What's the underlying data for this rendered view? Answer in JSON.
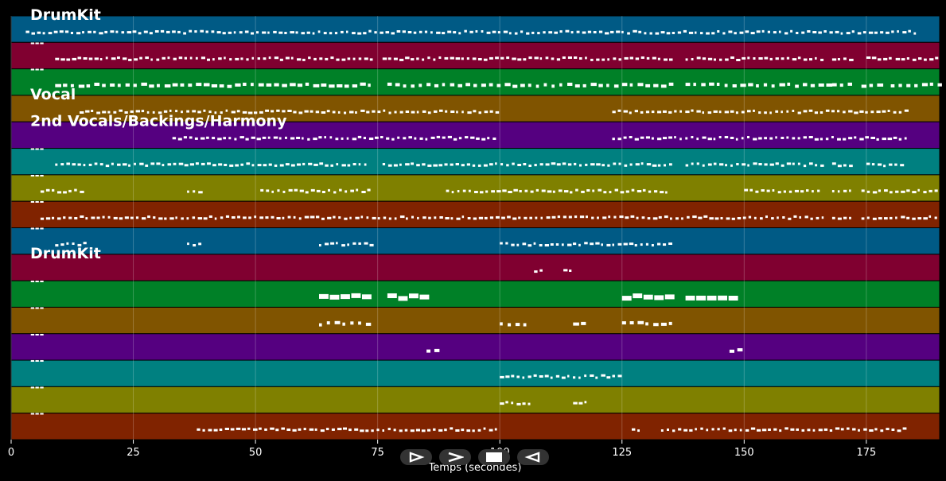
{
  "chart_data": {
    "type": "piano-roll",
    "xlabel": "Temps (secondes)",
    "xlim": [
      0,
      190
    ],
    "x_ticks": [
      0,
      25,
      50,
      75,
      100,
      125,
      150,
      175
    ],
    "grid": true,
    "lanes": [
      {
        "color": "#005a85",
        "label": "DrumKit",
        "note_size": "small",
        "segments": [
          [
            3,
            185
          ]
        ]
      },
      {
        "color": "#800030",
        "label": "---",
        "note_size": "small",
        "segments": [
          [
            9,
            74
          ],
          [
            76,
            135
          ],
          [
            138,
            166
          ],
          [
            168,
            172
          ],
          [
            175,
            180
          ],
          [
            181,
            190
          ]
        ]
      },
      {
        "color": "#008027",
        "label": "---",
        "note_size": "med",
        "segments": [
          [
            9,
            74
          ],
          [
            77,
            135
          ],
          [
            138,
            167
          ],
          [
            168,
            172
          ],
          [
            174,
            178
          ],
          [
            180,
            190
          ]
        ]
      },
      {
        "color": "#805400",
        "label": "Vocal",
        "note_size": "small",
        "segments": [
          [
            14,
            100
          ],
          [
            123,
            183
          ]
        ]
      },
      {
        "color": "#550080",
        "label": "2nd Vocals/Backings/Harmony",
        "note_size": "small",
        "segments": [
          [
            33,
            99
          ],
          [
            123,
            183
          ]
        ]
      },
      {
        "color": "#008080",
        "label": "---",
        "note_size": "small",
        "segments": [
          [
            9,
            73
          ],
          [
            76,
            135
          ],
          [
            138,
            166
          ],
          [
            168,
            172
          ],
          [
            175,
            183
          ]
        ]
      },
      {
        "color": "#7f8000",
        "label": "---",
        "note_size": "small",
        "segments": [
          [
            6,
            15
          ],
          [
            36,
            39
          ],
          [
            51,
            74
          ],
          [
            89,
            135
          ],
          [
            150,
            166
          ],
          [
            168,
            172
          ],
          [
            174,
            190
          ]
        ]
      },
      {
        "color": "#802300",
        "label": "---",
        "note_size": "small",
        "segments": [
          [
            6,
            166
          ],
          [
            168,
            172
          ],
          [
            174,
            190
          ]
        ]
      },
      {
        "color": "#005a85",
        "label": "---",
        "note_size": "small",
        "segments": [
          [
            9,
            15
          ],
          [
            36,
            39
          ],
          [
            63,
            74
          ],
          [
            100,
            135
          ]
        ]
      },
      {
        "color": "#800030",
        "label": "DrumKit",
        "note_size": "small",
        "segments": [
          [
            107,
            109
          ],
          [
            113,
            115
          ]
        ]
      },
      {
        "color": "#008027",
        "label": "---",
        "note_size": "large",
        "segments": [
          [
            63,
            74
          ],
          [
            77,
            85
          ],
          [
            125,
            135
          ],
          [
            138,
            147
          ]
        ]
      },
      {
        "color": "#805400",
        "label": "---",
        "note_size": "med",
        "segments": [
          [
            63,
            74
          ],
          [
            100,
            106
          ],
          [
            115,
            118
          ],
          [
            125,
            135
          ]
        ]
      },
      {
        "color": "#550080",
        "label": "---",
        "note_size": "med",
        "segments": [
          [
            85,
            88
          ],
          [
            147,
            150
          ]
        ]
      },
      {
        "color": "#008080",
        "label": "---",
        "note_size": "small",
        "segments": [
          [
            100,
            125
          ]
        ]
      },
      {
        "color": "#7f8000",
        "label": "---",
        "note_size": "small",
        "segments": [
          [
            100,
            106
          ],
          [
            115,
            118
          ]
        ]
      },
      {
        "color": "#802300",
        "label": "---",
        "note_size": "small",
        "segments": [
          [
            38,
            100
          ],
          [
            127,
            129
          ],
          [
            133,
            183
          ]
        ]
      }
    ]
  },
  "controls": [
    {
      "name": "play-forward-icon",
      "glyph": "play"
    },
    {
      "name": "next-icon",
      "glyph": "chevron"
    },
    {
      "name": "stop-icon",
      "glyph": "stop"
    },
    {
      "name": "play-reverse-icon",
      "glyph": "reverse"
    }
  ]
}
